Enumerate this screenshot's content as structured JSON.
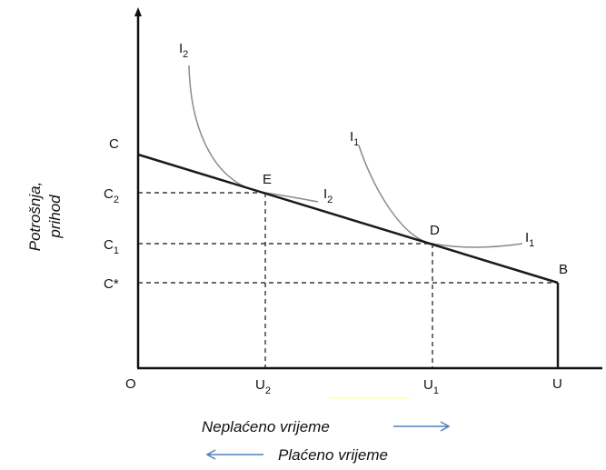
{
  "colors": {
    "axis": "#111111",
    "budget_line": "#1a1a1a",
    "indifference_curve": "#8a8a8a",
    "guide": "#111111",
    "arrow": "#4f81bd",
    "highlight": "#ffffcc"
  },
  "axes": {
    "y_title_line1": "Potrošnja,",
    "y_title_line2": "prihod",
    "x_arrow_right_label": "Neplaćeno vrijeme",
    "x_arrow_left_label": "Plaćeno vrijeme"
  },
  "labels": {
    "origin": "O",
    "c": "C",
    "c2_main": "C",
    "c2_sub": "2",
    "c1_main": "C",
    "c1_sub": "1",
    "cstar": "C*",
    "u2_main": "U",
    "u2_sub": "2",
    "u1_main": "U",
    "u1_sub": "1",
    "u": "U",
    "point_e": "E",
    "point_d": "D",
    "point_b": "B",
    "i2_top_main": "I",
    "i2_top_sub": "2",
    "i2_right_main": "I",
    "i2_right_sub": "2",
    "i1_top_main": "I",
    "i1_top_sub": "1",
    "i1_right_main": "I",
    "i1_right_sub": "1"
  }
}
